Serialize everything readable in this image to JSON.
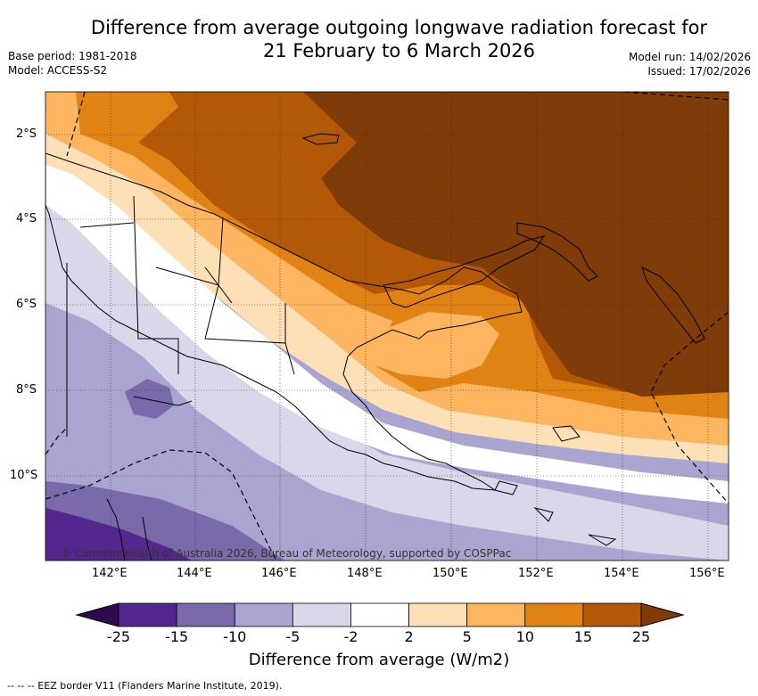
{
  "title_line1": "Difference from average outgoing longwave radiation forecast for",
  "title_line2": "21 February to 6 March 2026",
  "base_period": "Base period: 1981-2018",
  "model": "Model: ACCESS-S2",
  "model_run": "Model run: 14/02/2026",
  "issued": "Issued: 17/02/2026",
  "copyright": "© Commonwealth of Australia 2026, Bureau of Meteorology, supported by COSPPac",
  "lat_labels": [
    "2°S",
    "4°S",
    "6°S",
    "8°S",
    "10°S"
  ],
  "lon_labels": [
    "142°E",
    "144°E",
    "146°E",
    "148°E",
    "150°E",
    "152°E",
    "154°E",
    "156°E"
  ],
  "colorbar": {
    "ticks": [
      "-25",
      "-15",
      "-10",
      "-5",
      "-2",
      "2",
      "5",
      "10",
      "15",
      "25"
    ],
    "colors": [
      "#2d0a4e",
      "#54278f",
      "#7a6aaa",
      "#a9a4d0",
      "#d8d8ea",
      "#ffffff",
      "#fee0b6",
      "#fdb55f",
      "#e08214",
      "#b35806",
      "#7f3b08"
    ],
    "title": "Difference from average (W/m2)"
  },
  "footnote": "--  --  -- EEZ border V11 (Flanders Marine Institute, 2019)."
}
